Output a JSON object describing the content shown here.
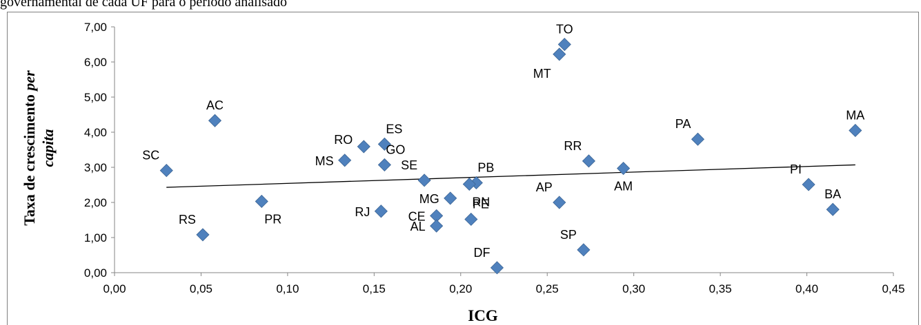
{
  "caption": "governamental de cada UF para o período analisado",
  "chart_data": {
    "type": "scatter",
    "xlabel": "ICG",
    "ylabel_main": "Taxa de crescimento ",
    "ylabel_italic1": "per",
    "ylabel_italic2": "capita",
    "xlim": [
      0,
      0.45
    ],
    "ylim": [
      0,
      7
    ],
    "xticks": [
      0,
      0.05,
      0.1,
      0.15,
      0.2,
      0.25,
      0.3,
      0.35,
      0.4,
      0.45
    ],
    "yticks": [
      0,
      1,
      2,
      3,
      4,
      5,
      6,
      7
    ],
    "xtick_labels": [
      "0,00",
      "0,05",
      "0,10",
      "0,15",
      "0,20",
      "0,25",
      "0,30",
      "0,35",
      "0,40",
      "0,45"
    ],
    "ytick_labels": [
      "0,00",
      "1,00",
      "2,00",
      "3,00",
      "4,00",
      "5,00",
      "6,00",
      "7,00"
    ],
    "marker_color": "#4f81bd",
    "trendline": {
      "x0": 0.03,
      "y0": 2.43,
      "x1": 0.428,
      "y1": 3.07,
      "color": "#000000"
    },
    "points": [
      {
        "label": "TO",
        "x": 0.26,
        "y": 6.5,
        "label_pos": "above"
      },
      {
        "label": "MT",
        "x": 0.257,
        "y": 6.22,
        "label_pos": "below-left"
      },
      {
        "label": "AC",
        "x": 0.058,
        "y": 4.33,
        "label_pos": "above"
      },
      {
        "label": "MA",
        "x": 0.428,
        "y": 4.05,
        "label_pos": "above"
      },
      {
        "label": "PA",
        "x": 0.337,
        "y": 3.8,
        "label_pos": "above-left"
      },
      {
        "label": "ES",
        "x": 0.156,
        "y": 3.66,
        "label_pos": "above-right"
      },
      {
        "label": "RO",
        "x": 0.144,
        "y": 3.59,
        "label_pos": "left-up"
      },
      {
        "label": "MS",
        "x": 0.133,
        "y": 3.2,
        "label_pos": "left"
      },
      {
        "label": "RR",
        "x": 0.274,
        "y": 3.18,
        "label_pos": "above-left"
      },
      {
        "label": "GO",
        "x": 0.156,
        "y": 3.07,
        "label_pos": "above-right"
      },
      {
        "label": "AM",
        "x": 0.294,
        "y": 2.97,
        "label_pos": "below"
      },
      {
        "label": "SC",
        "x": 0.03,
        "y": 2.91,
        "label_pos": "above-left"
      },
      {
        "label": "SE",
        "x": 0.179,
        "y": 2.63,
        "label_pos": "above-left"
      },
      {
        "label": "PB",
        "x": 0.209,
        "y": 2.56,
        "label_pos": "above-right"
      },
      {
        "label": "RN",
        "x": 0.205,
        "y": 2.52,
        "label_pos": "below-right"
      },
      {
        "label": "PI",
        "x": 0.401,
        "y": 2.51,
        "label_pos": "above-left"
      },
      {
        "label": "MG",
        "x": 0.194,
        "y": 2.12,
        "label_pos": "left"
      },
      {
        "label": "PR",
        "x": 0.085,
        "y": 2.03,
        "label_pos": "below-right"
      },
      {
        "label": "AP",
        "x": 0.257,
        "y": 2.0,
        "label_pos": "above-left"
      },
      {
        "label": "BA",
        "x": 0.415,
        "y": 1.8,
        "label_pos": "above"
      },
      {
        "label": "RJ",
        "x": 0.154,
        "y": 1.75,
        "label_pos": "left"
      },
      {
        "label": "CE",
        "x": 0.186,
        "y": 1.62,
        "label_pos": "left"
      },
      {
        "label": "PE",
        "x": 0.206,
        "y": 1.52,
        "label_pos": "above-right"
      },
      {
        "label": "AL",
        "x": 0.186,
        "y": 1.33,
        "label_pos": "left"
      },
      {
        "label": "RS",
        "x": 0.051,
        "y": 1.08,
        "label_pos": "above-left"
      },
      {
        "label": "SP",
        "x": 0.271,
        "y": 0.65,
        "label_pos": "above-left"
      },
      {
        "label": "DF",
        "x": 0.221,
        "y": 0.14,
        "label_pos": "above-left"
      }
    ]
  }
}
